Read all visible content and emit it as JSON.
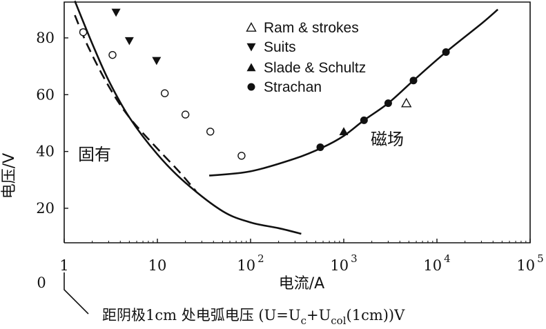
{
  "chart_data": {
    "type": "scatter",
    "title": "",
    "xlabel": "电流/A",
    "ylabel": "电压/V",
    "x_scale": "log",
    "xlim": [
      1,
      100000
    ],
    "ylim": [
      0,
      90
    ],
    "x_ticks": [
      {
        "value": 1,
        "base": "1",
        "exp": ""
      },
      {
        "value": 10,
        "base": "10",
        "exp": ""
      },
      {
        "value": 100,
        "base": "10",
        "exp": "2"
      },
      {
        "value": 1000,
        "base": "10",
        "exp": "3"
      },
      {
        "value": 10000,
        "base": "10",
        "exp": "4"
      },
      {
        "value": 100000,
        "base": "10",
        "exp": "5"
      }
    ],
    "y_ticks": [
      "20",
      "40",
      "60",
      "80"
    ],
    "y_zero_label": "0",
    "grid": false,
    "legend_position": "top-right",
    "legend": [
      {
        "marker": "triangle-open",
        "label": "Ram  & strokes"
      },
      {
        "marker": "triangle-down-filled",
        "label": "Suits"
      },
      {
        "marker": "triangle-up-filled",
        "label": "Slade  & Schultz"
      },
      {
        "marker": "circle-filled",
        "label": "Strachan"
      }
    ],
    "series": [
      {
        "name": "Ram  & strokes",
        "marker": "triangle-open",
        "points": [
          [
            4700,
            57
          ]
        ]
      },
      {
        "name": "Suits",
        "marker": "triangle-down-filled",
        "points": [
          [
            3.6,
            89
          ],
          [
            5,
            79
          ],
          [
            9.8,
            72
          ]
        ]
      },
      {
        "name": "Slade  & Schultz",
        "marker": "triangle-up-filled",
        "points": [
          [
            1000,
            47
          ]
        ]
      },
      {
        "name": "Strachan",
        "marker": "circle-filled",
        "points": [
          [
            560,
            41.5
          ],
          [
            1650,
            51
          ],
          [
            3000,
            57
          ],
          [
            5600,
            65
          ],
          [
            12500,
            75
          ]
        ]
      },
      {
        "name": "",
        "marker": "circle-open",
        "points": [
          [
            1.6,
            82
          ],
          [
            3.3,
            74
          ],
          [
            12,
            60.5
          ],
          [
            20,
            53
          ],
          [
            37,
            47
          ],
          [
            80,
            38.5
          ]
        ]
      }
    ],
    "curves": [
      {
        "kind": "solid",
        "points": [
          [
            1.3,
            93
          ],
          [
            2,
            78
          ],
          [
            3,
            65
          ],
          [
            5,
            52
          ],
          [
            10,
            39
          ],
          [
            20,
            29
          ],
          [
            50,
            19
          ],
          [
            100,
            15
          ],
          [
            200,
            13
          ],
          [
            350,
            11
          ]
        ]
      },
      {
        "kind": "dashed",
        "points": [
          [
            1.3,
            88
          ],
          [
            1.8,
            77
          ],
          [
            3,
            63
          ],
          [
            5,
            52
          ],
          [
            10,
            41
          ],
          [
            17,
            33
          ],
          [
            26,
            26
          ]
        ]
      },
      {
        "kind": "solid",
        "points": [
          [
            36,
            31.5
          ],
          [
            100,
            33
          ],
          [
            300,
            37.5
          ],
          [
            600,
            41.5
          ],
          [
            1000,
            45.5
          ],
          [
            1650,
            51
          ],
          [
            3000,
            57
          ],
          [
            5600,
            65
          ],
          [
            12500,
            75
          ],
          [
            30000,
            85
          ],
          [
            45000,
            90
          ]
        ]
      }
    ],
    "annotations": [
      "固有",
      "磁场"
    ],
    "secondary_axis_label": "距阴极1cm 处电弧电压 (U=U",
    "secondary_axis_sub1": "c",
    "secondary_axis_mid": "+U",
    "secondary_axis_sub2": "col",
    "secondary_axis_tail": "(1cm))V"
  }
}
